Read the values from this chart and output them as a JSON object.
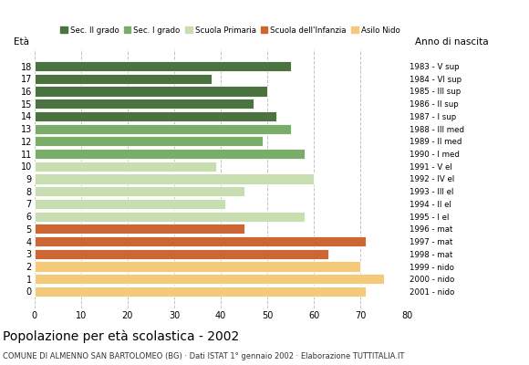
{
  "ages": [
    18,
    17,
    16,
    15,
    14,
    13,
    12,
    11,
    10,
    9,
    8,
    7,
    6,
    5,
    4,
    3,
    2,
    1,
    0
  ],
  "values": [
    55,
    38,
    50,
    47,
    52,
    55,
    49,
    58,
    39,
    60,
    45,
    41,
    58,
    45,
    71,
    63,
    70,
    75,
    71
  ],
  "right_labels": [
    "1983 - V sup",
    "1984 - VI sup",
    "1985 - III sup",
    "1986 - II sup",
    "1987 - I sup",
    "1988 - III med",
    "1989 - II med",
    "1990 - I med",
    "1991 - V el",
    "1992 - IV el",
    "1993 - III el",
    "1994 - II el",
    "1995 - I el",
    "1996 - mat",
    "1997 - mat",
    "1998 - mat",
    "1999 - nido",
    "2000 - nido",
    "2001 - nido"
  ],
  "colors": [
    "#4a7340",
    "#4a7340",
    "#4a7340",
    "#4a7340",
    "#4a7340",
    "#7aad6a",
    "#7aad6a",
    "#7aad6a",
    "#c8ddb0",
    "#c8ddb0",
    "#c8ddb0",
    "#c8ddb0",
    "#c8ddb0",
    "#cc6633",
    "#cc6633",
    "#cc6633",
    "#f5c97a",
    "#f5c97a",
    "#f5c97a"
  ],
  "legend_labels": [
    "Sec. II grado",
    "Sec. I grado",
    "Scuola Primaria",
    "Scuola dell'Infanzia",
    "Asilo Nido"
  ],
  "legend_colors": [
    "#4a7340",
    "#7aad6a",
    "#c8ddb0",
    "#cc6633",
    "#f5c97a"
  ],
  "title": "Popolazione per età scolastica - 2002",
  "subtitle": "COMUNE DI ALMENNO SAN BARTOLOMEO (BG) · Dati ISTAT 1° gennaio 2002 · Elaborazione TUTTITALIA.IT",
  "xlabel_left": "Età",
  "xlabel_right": "Anno di nascita",
  "xlim": [
    0,
    80
  ],
  "xticks": [
    0,
    10,
    20,
    30,
    40,
    50,
    60,
    70,
    80
  ],
  "background_color": "#ffffff",
  "grid_color": "#bbbbbb"
}
